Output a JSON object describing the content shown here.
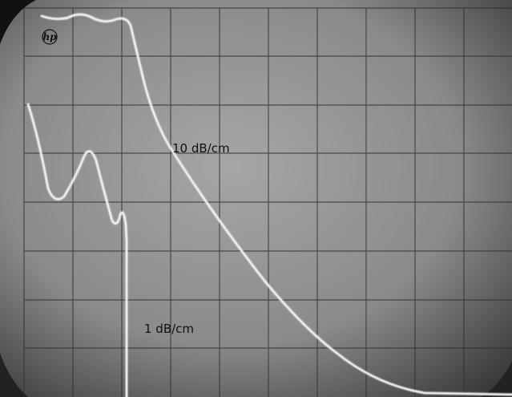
{
  "logo": "hp",
  "annotations": [
    "10 dB/cm",
    "1 dB/cm"
  ]
}
